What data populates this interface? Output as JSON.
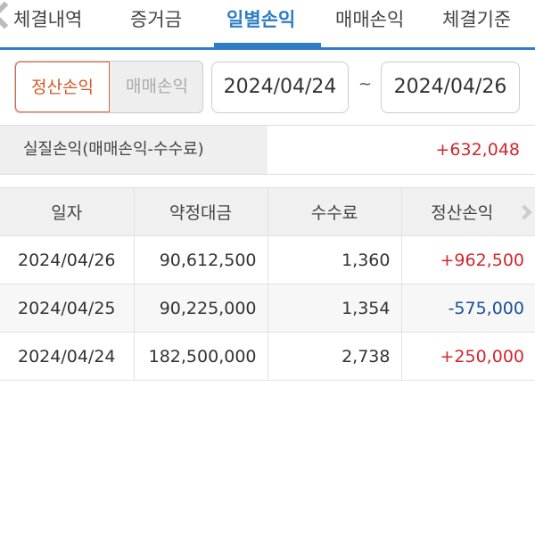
{
  "tabs": [
    {
      "label": "체결내역"
    },
    {
      "label": "증거금"
    },
    {
      "label": "일별손익",
      "active": true
    },
    {
      "label": "매매손익"
    },
    {
      "label": "체결기준"
    }
  ],
  "filter": {
    "toggle": [
      {
        "label": "정산손익",
        "selected": true
      },
      {
        "label": "매매손익",
        "selected": false
      }
    ],
    "start_date": "2024/04/24",
    "separator": "~",
    "end_date": "2024/04/26"
  },
  "summary": {
    "label": "실질손익(매매손익-수수료)",
    "value": "+632,048"
  },
  "table": {
    "headers": [
      "일자",
      "약정대금",
      "수수료",
      "정산손익"
    ],
    "rows": [
      {
        "date": "2024/04/26",
        "amount": "90,612,500",
        "fee": "1,360",
        "pnl": "+962,500"
      },
      {
        "date": "2024/04/25",
        "amount": "90,225,000",
        "fee": "1,354",
        "pnl": "-575,000"
      },
      {
        "date": "2024/04/24",
        "amount": "182,500,000",
        "fee": "2,738",
        "pnl": "+250,000"
      }
    ]
  },
  "colors": {
    "accent": "#2f7dc4",
    "positive": "#d0282e",
    "negative": "#1b4f9a",
    "toggle_active": "#d05a25"
  }
}
